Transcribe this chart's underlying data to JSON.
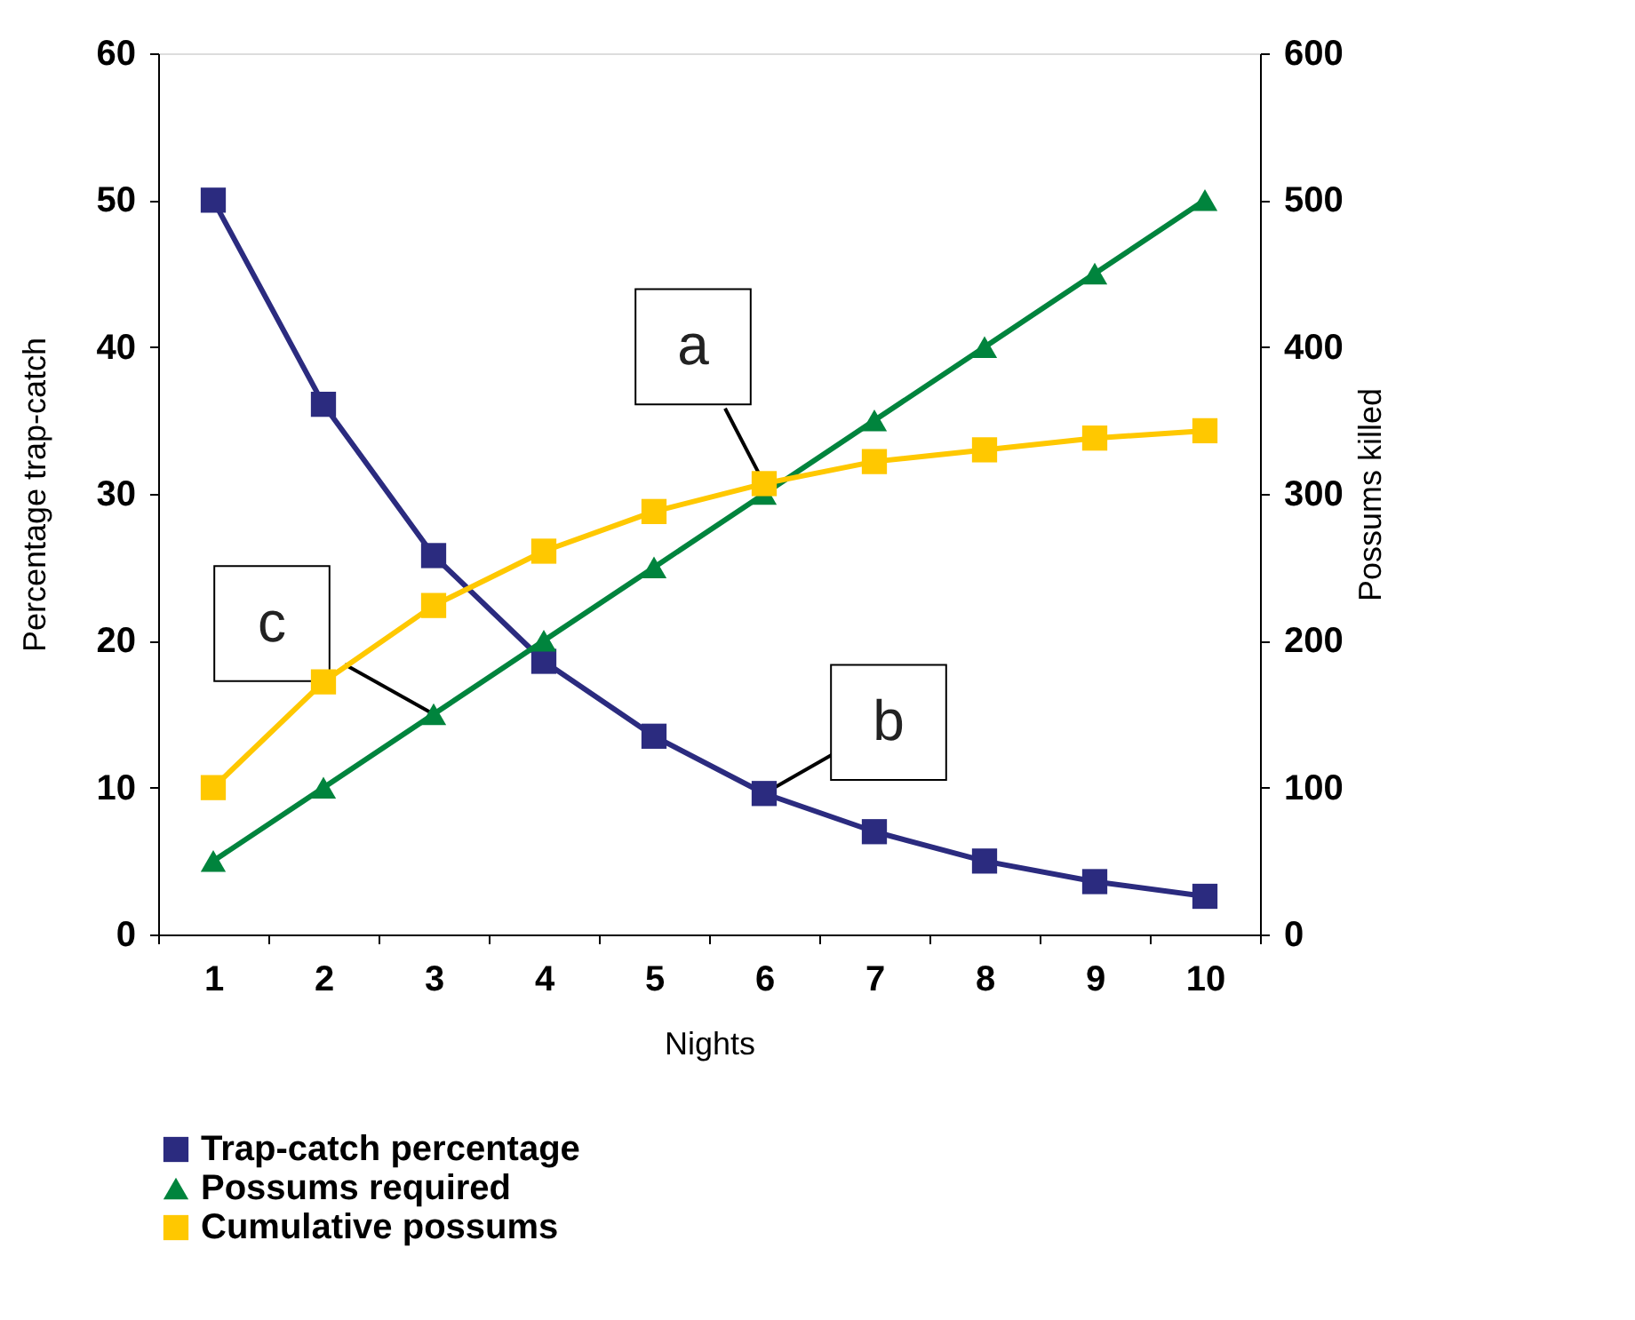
{
  "chart_data": {
    "type": "line",
    "xlabel": "Nights",
    "ylabel": "Percentage trap-catch",
    "y2label": "Possums killed",
    "categories": [
      "1",
      "2",
      "3",
      "4",
      "5",
      "6",
      "7",
      "8",
      "9",
      "10"
    ],
    "series": [
      {
        "name": "Trap-catch percentage",
        "color": "#2b2b7f",
        "marker": "square",
        "values": [
          50.0,
          36.1,
          25.8,
          18.6,
          13.5,
          9.6,
          7.0,
          5.0,
          3.6,
          2.6
        ]
      },
      {
        "name": "Possums required",
        "color": "#00843d",
        "marker": "triangle",
        "axis": "y2",
        "values": [
          50,
          100,
          150,
          200,
          250,
          300,
          350,
          400,
          450,
          500
        ]
      },
      {
        "name": "Cumulative possums",
        "color": "#ffc800",
        "marker": "square",
        "axis": "y2",
        "values": [
          100,
          172,
          224,
          261,
          288,
          307,
          322,
          330,
          338,
          343
        ]
      }
    ],
    "ylim": [
      0,
      60
    ],
    "yticks": [
      0,
      10,
      20,
      30,
      40,
      50,
      60
    ],
    "y2lim": [
      0,
      600
    ],
    "y2ticks": [
      0,
      100,
      200,
      300,
      400,
      500,
      600
    ],
    "annotations": [
      {
        "text": "a",
        "x": "6",
        "y": 30.7
      },
      {
        "text": "b",
        "x": "6",
        "y": 9.6
      },
      {
        "text": "c",
        "x": "3",
        "y": 15
      }
    ],
    "grid": false,
    "legend": "bottom",
    "line_style": "solid"
  }
}
